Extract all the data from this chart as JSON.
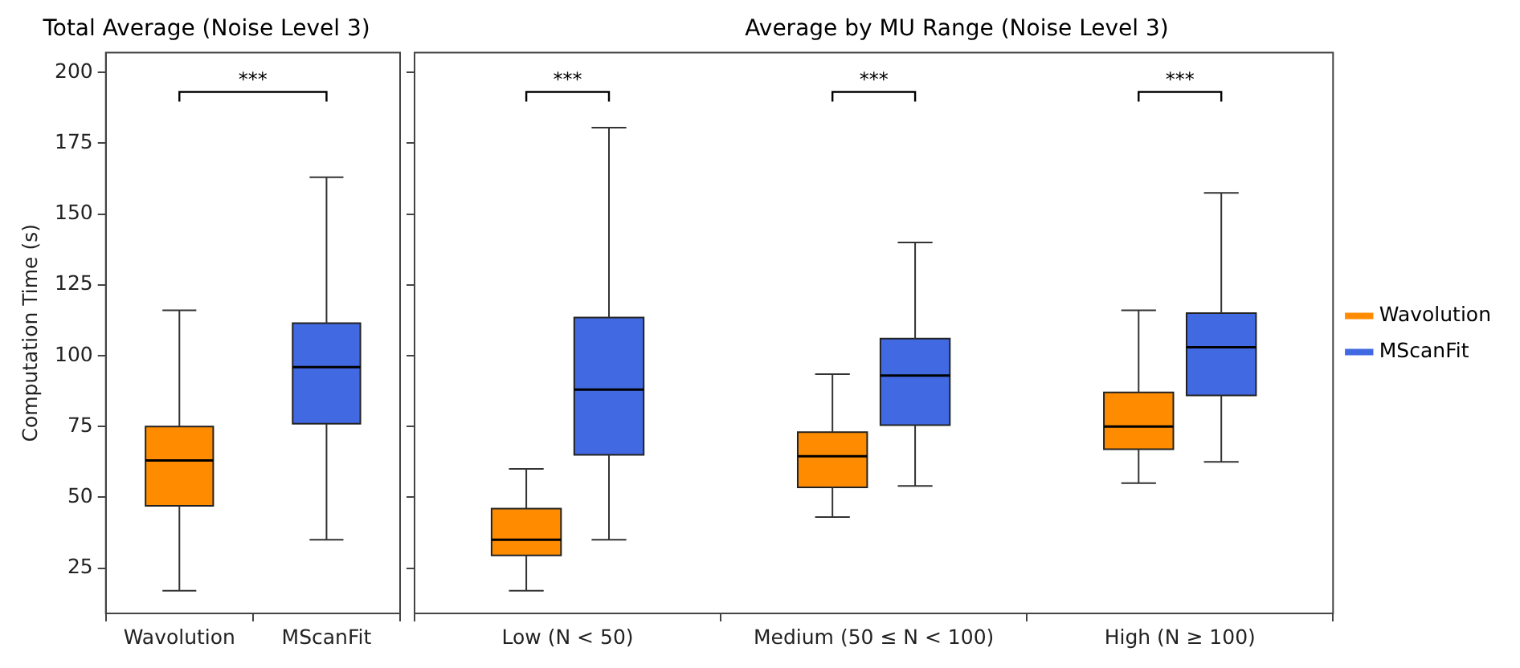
{
  "chart_data": [
    {
      "type": "box",
      "title": "Total Average (Noise Level 3)",
      "ylabel": "Computation Time (s)",
      "categories": [
        "Wavolution",
        "MScanFit"
      ],
      "boxes": [
        {
          "low": 17,
          "q1": 47,
          "median": 63,
          "q3": 75,
          "high": 116
        },
        {
          "low": 35,
          "q1": 76,
          "median": 96,
          "q3": 111.5,
          "high": 163
        }
      ],
      "colors": [
        "#ff8c00",
        "#4169e1"
      ],
      "ylim": [
        9,
        207
      ],
      "yticks": [
        25,
        50,
        75,
        100,
        125,
        150,
        175,
        200
      ],
      "grid": false,
      "annotations": [
        "***"
      ]
    },
    {
      "type": "box",
      "title": "Average by MU Range (Noise Level 3)",
      "categories": [
        "Low (N < 50)",
        "Medium (50 ≤ N < 100)",
        "High (N ≥ 100)"
      ],
      "series": [
        {
          "name": "Wavolution",
          "color": "#ff8c00",
          "boxes": [
            {
              "low": 17,
              "q1": 29.5,
              "median": 35,
              "q3": 46,
              "high": 60
            },
            {
              "low": 43,
              "q1": 53.5,
              "median": 64.5,
              "q3": 73,
              "high": 93.5
            },
            {
              "low": 55,
              "q1": 67,
              "median": 75,
              "q3": 87,
              "high": 116
            }
          ]
        },
        {
          "name": "MScanFit",
          "color": "#4169e1",
          "boxes": [
            {
              "low": 35,
              "q1": 65,
              "median": 88,
              "q3": 113.5,
              "high": 180.5
            },
            {
              "low": 54,
              "q1": 75.5,
              "median": 93,
              "q3": 106,
              "high": 140
            },
            {
              "low": 62.5,
              "q1": 86,
              "median": 103,
              "q3": 115,
              "high": 157.5
            }
          ]
        }
      ],
      "ylim": [
        9,
        207
      ],
      "yticks": [
        25,
        50,
        75,
        100,
        125,
        150,
        175,
        200
      ],
      "grid": false,
      "legend": "right",
      "tick_labels": "x",
      "annotations": [
        "***",
        "***",
        "***"
      ]
    }
  ]
}
